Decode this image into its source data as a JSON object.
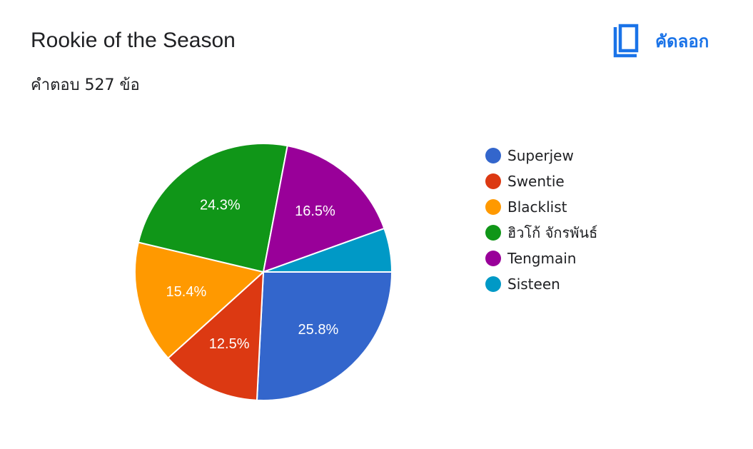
{
  "header": {
    "title": "Rookie of the Season",
    "response_count": "คำตอบ 527 ข้อ",
    "copy_label": "คัดลอก",
    "copy_icon": "copy-icon",
    "accent_color": "#1a73e8"
  },
  "chart_data": {
    "type": "pie",
    "title": "Rookie of the Season",
    "total_responses": 527,
    "legend_position": "right",
    "slices": [
      {
        "label": "Superjew",
        "value": 25.8,
        "display": "25.8%",
        "color": "#3366cc"
      },
      {
        "label": "Swentie",
        "value": 12.5,
        "display": "12.5%",
        "color": "#dc3912"
      },
      {
        "label": "Blacklist",
        "value": 15.4,
        "display": "15.4%",
        "color": "#ff9900"
      },
      {
        "label": "ฮิวโก้ จักรพันธ์",
        "value": 24.3,
        "display": "24.3%",
        "color": "#109618"
      },
      {
        "label": "Tengmain",
        "value": 16.5,
        "display": "16.5%",
        "color": "#990099"
      },
      {
        "label": "Sisteen",
        "value": 5.5,
        "display": "",
        "color": "#0099c6"
      }
    ]
  }
}
